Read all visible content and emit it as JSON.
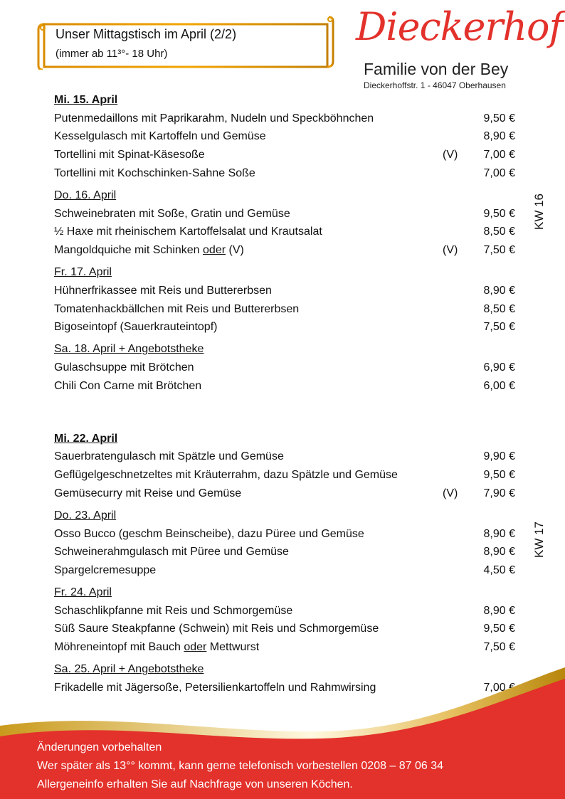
{
  "header": {
    "title": "Unser Mittagstisch im April (2/2)",
    "subtitle": "(immer ab 11³°- 18 Uhr)"
  },
  "brand": {
    "logo": "Dieckerhof",
    "family": "Familie von der Bey",
    "address": "Dieckerhoffstr. 1 - 46047 Oberhausen",
    "color": "#e3312b"
  },
  "weeks": [
    {
      "label": "KW 16",
      "days": [
        {
          "title": "Mi. 15. April",
          "bold": true,
          "items": [
            {
              "parts": [
                "Putenmedaillons mit Paprikarahm, Nudeln und Speckböhnchen"
              ],
              "veg": "",
              "price": "9,50 €"
            },
            {
              "parts": [
                "Kesselgulasch mit Kartoffeln und Gemüse"
              ],
              "veg": "",
              "price": "8,90 €"
            },
            {
              "parts": [
                "Tortellini mit Spinat-Käsesoße"
              ],
              "veg": "(V)",
              "price": "7,00 €"
            },
            {
              "parts": [
                "Tortellini mit Kochschinken-Sahne Soße"
              ],
              "veg": "",
              "price": "7,00 €"
            }
          ]
        },
        {
          "title": "Do. 16. April",
          "bold": false,
          "items": [
            {
              "parts": [
                "Schweinebraten mit Soße, Gratin und Gemüse"
              ],
              "veg": "",
              "price": "9,50 €"
            },
            {
              "parts": [
                "½ Haxe mit rheinischem Kartoffelsalat und Krautsalat"
              ],
              "veg": "",
              "price": "8,50 €"
            },
            {
              "parts": [
                "Mangoldquiche mit Schinken ",
                "oder",
                "  (V)"
              ],
              "veg": "(V)",
              "price": "7,50 €"
            }
          ]
        },
        {
          "title": "Fr. 17. April",
          "bold": false,
          "items": [
            {
              "parts": [
                "Hühnerfrikassee mit Reis und Buttererbsen"
              ],
              "veg": "",
              "price": "8,90 €"
            },
            {
              "parts": [
                "Tomatenhackbällchen mit Reis und Buttererbsen"
              ],
              "veg": "",
              "price": "8,50 €"
            },
            {
              "parts": [
                "Bigoseintopf (Sauerkrauteintopf)"
              ],
              "veg": "",
              "price": "7,50 €"
            }
          ]
        },
        {
          "title": "Sa. 18. April + Angebotstheke",
          "bold": false,
          "items": [
            {
              "parts": [
                "Gulaschsuppe mit Brötchen"
              ],
              "veg": "",
              "price": "6,90 €"
            },
            {
              "parts": [
                "Chili Con Carne mit Brötchen"
              ],
              "veg": "",
              "price": "6,00 €"
            }
          ]
        }
      ]
    },
    {
      "label": "KW 17",
      "days": [
        {
          "title": "Mi. 22. April",
          "bold": true,
          "items": [
            {
              "parts": [
                "Sauerbratengulasch mit Spätzle und Gemüse"
              ],
              "veg": "",
              "price": "9,90 €"
            },
            {
              "parts": [
                "Geflügelgeschnetzeltes mit Kräuterrahm, dazu Spätzle und Gemüse"
              ],
              "veg": "",
              "price": "9,50 €"
            },
            {
              "parts": [
                "Gemüsecurry mit Reise und Gemüse"
              ],
              "veg": "(V)",
              "price": "7,90 €"
            }
          ]
        },
        {
          "title": "Do. 23. April",
          "bold": false,
          "items": [
            {
              "parts": [
                "Osso Bucco (geschm Beinscheibe), dazu Püree und Gemüse"
              ],
              "veg": "",
              "price": "8,90 €"
            },
            {
              "parts": [
                "Schweinerahmgulasch mit Püree und Gemüse"
              ],
              "veg": "",
              "price": "8,90 €"
            },
            {
              "parts": [
                "Spargelcremesuppe"
              ],
              "veg": "",
              "price": "4,50 €"
            }
          ]
        },
        {
          "title": "Fr. 24. April",
          "bold": false,
          "items": [
            {
              "parts": [
                "Schaschlikpfanne mit Reis und Schmorgemüse"
              ],
              "veg": "",
              "price": "8,90 €"
            },
            {
              "parts": [
                "Süß Saure Steakpfanne (Schwein) mit Reis und Schmorgemüse"
              ],
              "veg": "",
              "price": "9,50 €"
            },
            {
              "parts": [
                "Möhreneintopf  mit Bauch ",
                "oder",
                " Mettwurst"
              ],
              "veg": "",
              "price": "7,50 €"
            }
          ]
        },
        {
          "title": "Sa. 25. April + Angebotstheke",
          "bold": false,
          "items": [
            {
              "parts": [
                "Frikadelle mit Jägersoße, Petersilienkartoffeln und Rahmwirsing"
              ],
              "veg": "",
              "price": "7,00 €"
            }
          ]
        }
      ]
    }
  ],
  "footer": {
    "lines": [
      "Änderungen vorbehalten",
      "Wer später als 13°° kommt, kann gerne telefonisch vorbestellen 0208 – 87 06 34",
      "Allergeneinfo erhalten Sie auf Nachfrage von unseren Köchen."
    ],
    "red": "#e3312b",
    "gold": "#c99a1c"
  }
}
